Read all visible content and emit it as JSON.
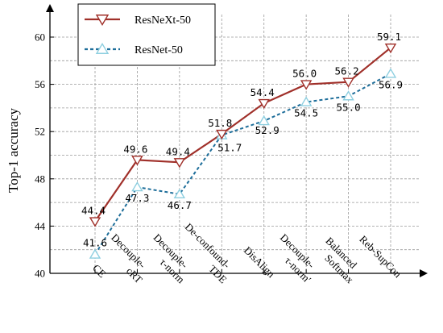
{
  "chart_data": {
    "type": "line",
    "categories": [
      "CE",
      "Decouple-cRT",
      "Decouple-τ-norm",
      "De-confound-TDE",
      "DisAlign",
      "Decouple-τ-norm′",
      "Balanced Softmax",
      "Reb-SupCon"
    ],
    "category_lines": [
      [
        "CE"
      ],
      [
        "Decouple-",
        "cRT"
      ],
      [
        "Decouple-",
        "τ-norm"
      ],
      [
        "De-confound-",
        "TDE"
      ],
      [
        "DisAlign"
      ],
      [
        "Decouple-",
        "τ-norm′"
      ],
      [
        "Balanced",
        "Softmax"
      ],
      [
        "Reb-SupCon"
      ]
    ],
    "series": [
      {
        "name": "ResNeXt-50",
        "values": [
          44.4,
          49.6,
          49.4,
          51.8,
          54.4,
          56.0,
          56.2,
          59.1
        ],
        "labels": [
          "44.4",
          "49.6",
          "49.4",
          "51.8",
          "54.4",
          "56.0",
          "56.2",
          "59.1"
        ],
        "color": "#a0302a",
        "marker": "triangle-down",
        "line_style": "solid"
      },
      {
        "name": "ResNet-50",
        "values": [
          41.6,
          47.3,
          46.7,
          51.7,
          52.9,
          54.5,
          55.0,
          56.9
        ],
        "labels": [
          "41.6",
          "47.3",
          "46.7",
          "51.7",
          "52.9",
          "54.5",
          "55.0",
          "56.9"
        ],
        "color": "#1e6e9a",
        "marker_color": "#8ecfe0",
        "marker": "triangle-up",
        "line_style": "dashed"
      }
    ],
    "ylabel": "Top-1 accuracy",
    "xlabel": "",
    "ylim": [
      40,
      62
    ],
    "yticks": [
      40,
      44,
      48,
      52,
      56,
      60
    ],
    "grid": true,
    "legend_position": "top-left"
  }
}
